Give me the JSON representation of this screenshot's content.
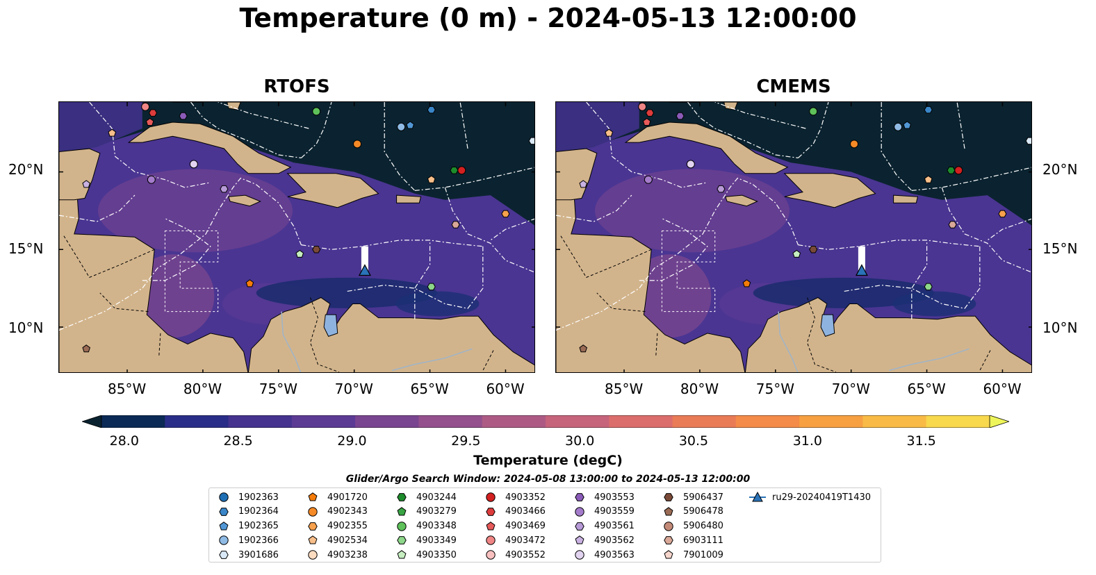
{
  "title": "Temperature (0 m) - 2024-05-13 12:00:00",
  "panels": [
    {
      "title": "RTOFS"
    },
    {
      "title": "CMEMS"
    }
  ],
  "lon_labels": [
    "85°W",
    "80°W",
    "75°W",
    "70°W",
    "65°W",
    "60°W"
  ],
  "lat_labels": [
    "20°N",
    "15°N",
    "10°N"
  ],
  "map_extent": {
    "lon_min": -89.5,
    "lon_max": -58.0,
    "lat_min": 7.0,
    "lat_max": 24.5
  },
  "colorbar": {
    "label": "Temperature (degC)",
    "ticks": [
      "28.0",
      "28.5",
      "29.0",
      "29.5",
      "30.0",
      "30.5",
      "31.0",
      "31.5"
    ],
    "colors": [
      "#0b2a55",
      "#2a2d88",
      "#45338f",
      "#5c3b95",
      "#7a4590",
      "#93508c",
      "#ad5b85",
      "#c6647c",
      "#db6d6c",
      "#ea7b57",
      "#f48b48",
      "#f7a042",
      "#f9bb45",
      "#f8d84d"
    ],
    "under_color": "#0a2230",
    "over_color": "#eef55a"
  },
  "search_window": "Glider/Argo Search Window: 2024-05-08 13:00:00 to 2024-05-13 12:00:00",
  "legend": [
    {
      "label": "1902363",
      "marker": "circle",
      "color": "#1f6fb4"
    },
    {
      "label": "1902364",
      "marker": "hexagon",
      "color": "#3a86c8"
    },
    {
      "label": "1902365",
      "marker": "pentagon",
      "color": "#5197d6"
    },
    {
      "label": "1902366",
      "marker": "circle",
      "color": "#8fbbe5"
    },
    {
      "label": "3901686",
      "marker": "hexagon",
      "color": "#d9e9f7"
    },
    {
      "label": "4901720",
      "marker": "pentagon",
      "color": "#f57c0a"
    },
    {
      "label": "4902343",
      "marker": "circle",
      "color": "#f68a26"
    },
    {
      "label": "4902355",
      "marker": "hexagon",
      "color": "#f7a14c"
    },
    {
      "label": "4902534",
      "marker": "pentagon",
      "color": "#f8bf8a"
    },
    {
      "label": "4903238",
      "marker": "circle",
      "color": "#fcdcc0"
    },
    {
      "label": "4903244",
      "marker": "hexagon",
      "color": "#1d8c2c"
    },
    {
      "label": "4903279",
      "marker": "pentagon",
      "color": "#38a443"
    },
    {
      "label": "4903348",
      "marker": "circle",
      "color": "#5ec15a"
    },
    {
      "label": "4903349",
      "marker": "hexagon",
      "color": "#8dd68a"
    },
    {
      "label": "4903350",
      "marker": "pentagon",
      "color": "#c6eec0"
    },
    {
      "label": "4903352",
      "marker": "circle",
      "color": "#d32020"
    },
    {
      "label": "4903466",
      "marker": "hexagon",
      "color": "#de3c3c"
    },
    {
      "label": "4903469",
      "marker": "pentagon",
      "color": "#e65a5a"
    },
    {
      "label": "4903472",
      "marker": "circle",
      "color": "#f08585"
    },
    {
      "label": "4903552",
      "marker": "circle",
      "color": "#f9c0c0"
    },
    {
      "label": "4903553",
      "marker": "hexagon",
      "color": "#8a5bb8"
    },
    {
      "label": "4903559",
      "marker": "circle",
      "color": "#a47ccb"
    },
    {
      "label": "4903561",
      "marker": "hexagon",
      "color": "#b79ad7"
    },
    {
      "label": "4903562",
      "marker": "pentagon",
      "color": "#c9b2e2"
    },
    {
      "label": "4903563",
      "marker": "circle",
      "color": "#e2d4f0"
    },
    {
      "label": "5906437",
      "marker": "hexagon",
      "color": "#7a4a38"
    },
    {
      "label": "5906478",
      "marker": "pentagon",
      "color": "#9a6b55"
    },
    {
      "label": "5906480",
      "marker": "circle",
      "color": "#c48a78"
    },
    {
      "label": "6903111",
      "marker": "hexagon",
      "color": "#d9a898"
    },
    {
      "label": "7901009",
      "marker": "pentagon",
      "color": "#f6d6cc"
    },
    {
      "label": "ru29-20240419T1430",
      "marker": "triangle-line",
      "color": "#2a73b8"
    }
  ],
  "floats": [
    {
      "id": "4903472",
      "lon": -83.8,
      "lat": 24.2
    },
    {
      "id": "4903466",
      "lon": -83.3,
      "lat": 23.8
    },
    {
      "id": "4903469",
      "lon": -83.5,
      "lat": 23.2
    },
    {
      "id": "4903553",
      "lon": -81.3,
      "lat": 23.6
    },
    {
      "id": "4902534",
      "lon": -86.0,
      "lat": 22.5
    },
    {
      "id": "4903348",
      "lon": -72.5,
      "lat": 23.9
    },
    {
      "id": "4902343",
      "lon": -69.8,
      "lat": 21.8
    },
    {
      "id": "1902366",
      "lon": -66.9,
      "lat": 22.9
    },
    {
      "id": "1902365",
      "lon": -66.3,
      "lat": 23.0
    },
    {
      "id": "1902364",
      "lon": -64.9,
      "lat": 24.0
    },
    {
      "id": "3901686",
      "lon": -58.2,
      "lat": 22.0
    },
    {
      "id": "4903559",
      "lon": -83.4,
      "lat": 19.5
    },
    {
      "id": "4903563",
      "lon": -80.6,
      "lat": 20.5
    },
    {
      "id": "4903562",
      "lon": -87.7,
      "lat": 19.2
    },
    {
      "id": "4903561",
      "lon": -78.6,
      "lat": 18.9
    },
    {
      "id": "4903244",
      "lon": -63.4,
      "lat": 20.1
    },
    {
      "id": "4903352",
      "lon": -62.9,
      "lat": 20.1
    },
    {
      "id": "4902534",
      "lon": -64.9,
      "lat": 19.5
    },
    {
      "id": "4902355",
      "lon": -60.0,
      "lat": 17.3
    },
    {
      "id": "6903111",
      "lon": -63.3,
      "lat": 16.6
    },
    {
      "id": "5906437",
      "lon": -72.5,
      "lat": 15.0
    },
    {
      "id": "4903350",
      "lon": -73.6,
      "lat": 14.7
    },
    {
      "id": "4901720",
      "lon": -76.9,
      "lat": 12.8
    },
    {
      "id": "4903349",
      "lon": -64.9,
      "lat": 12.6
    },
    {
      "id": "5906478",
      "lon": -87.7,
      "lat": 8.6
    }
  ],
  "glider": {
    "id": "ru29-20240419T1430",
    "lon": -69.3,
    "lat": 13.6,
    "track": [
      [
        -69.3,
        15.2
      ],
      [
        -69.3,
        13.6
      ]
    ]
  }
}
